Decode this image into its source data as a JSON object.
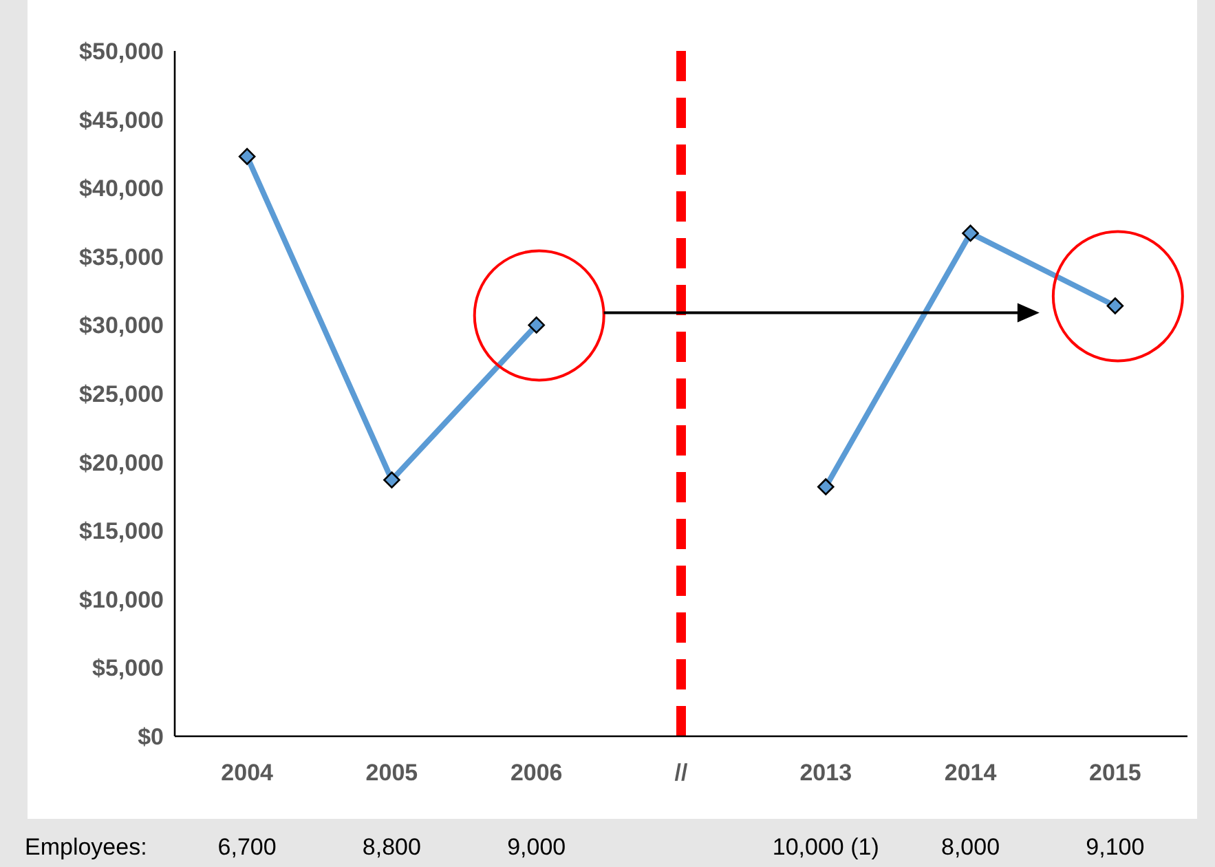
{
  "chart_data": {
    "type": "line",
    "categories": [
      "2004",
      "2005",
      "2006",
      "//",
      "2013",
      "2014",
      "2015"
    ],
    "series": [
      {
        "color": "#5b9bd5",
        "values": [
          42300,
          18700,
          30000,
          null,
          18200,
          36700,
          31400
        ]
      }
    ],
    "ylim": [
      0,
      50000
    ],
    "yticks": [
      {
        "value": 0,
        "label": "$0"
      },
      {
        "value": 5000,
        "label": "$5,000"
      },
      {
        "value": 10000,
        "label": "$10,000"
      },
      {
        "value": 15000,
        "label": "$15,000"
      },
      {
        "value": 20000,
        "label": "$20,000"
      },
      {
        "value": 25000,
        "label": "$25,000"
      },
      {
        "value": 30000,
        "label": "$30,000"
      },
      {
        "value": 35000,
        "label": "$35,000"
      },
      {
        "value": 40000,
        "label": "$40,000"
      },
      {
        "value": 45000,
        "label": "$45,000"
      },
      {
        "value": 50000,
        "label": "$50,000"
      }
    ],
    "ref_lines": [
      {
        "axis": "x",
        "value": "//",
        "color": "#ff0000",
        "line_style": "dashed"
      }
    ],
    "annotations": [
      "Employees:",
      "6,700",
      "8,800",
      "9,000",
      "10,000 (1)",
      "8,000",
      "9,100"
    ],
    "grid": false,
    "legend": false,
    "marker": "diamond",
    "line_style": "solid"
  }
}
